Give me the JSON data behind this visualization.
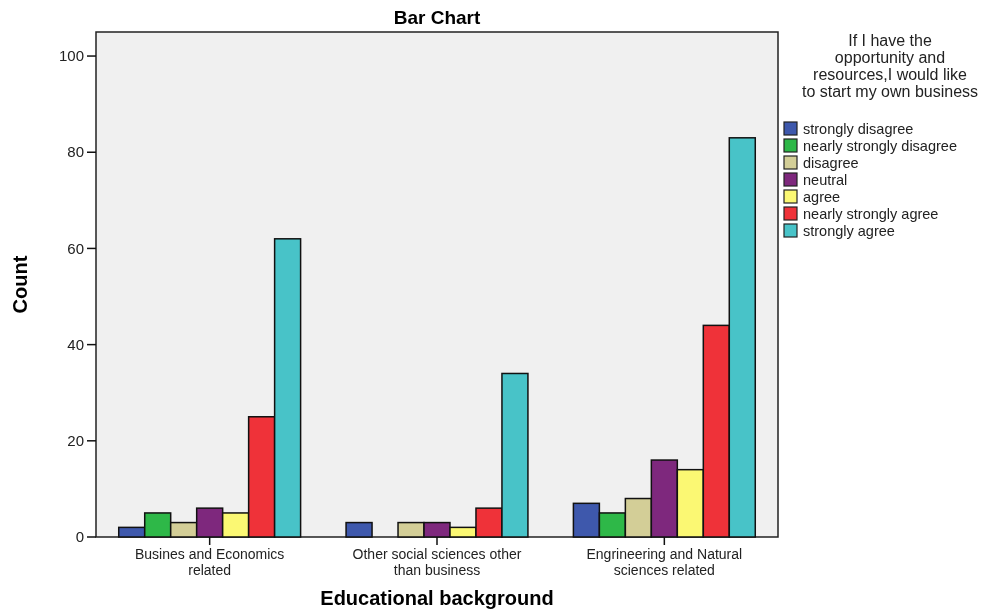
{
  "chart_data": {
    "type": "bar",
    "title": "Bar Chart",
    "xlabel": "Educational background",
    "ylabel": "Count",
    "legend_title": "If I have the opportunity and resources,I would like to start my own business",
    "legend": "right",
    "categories": [
      "Busines and Economics related",
      "Other social sciences other than business",
      "Engrineering and Natural sciences related"
    ],
    "ylim": [
      0,
      105
    ],
    "yticks": [
      0,
      20,
      40,
      60,
      80,
      100
    ],
    "series": [
      {
        "name": "strongly disagree",
        "color": "#3e58ac",
        "values": [
          2,
          3,
          7
        ]
      },
      {
        "name": "nearly strongly disagree",
        "color": "#2eb848",
        "values": [
          5,
          0,
          5
        ]
      },
      {
        "name": "disagree",
        "color": "#d3ce97",
        "values": [
          3,
          3,
          8
        ]
      },
      {
        "name": "neutral",
        "color": "#7e287d",
        "values": [
          6,
          3,
          16
        ]
      },
      {
        "name": "agree",
        "color": "#fbf873",
        "values": [
          5,
          2,
          14
        ]
      },
      {
        "name": "nearly strongly agree",
        "color": "#ef3239",
        "values": [
          25,
          6,
          44
        ]
      },
      {
        "name": "strongly agree",
        "color": "#48c3c8",
        "values": [
          62,
          34,
          83
        ]
      }
    ]
  }
}
